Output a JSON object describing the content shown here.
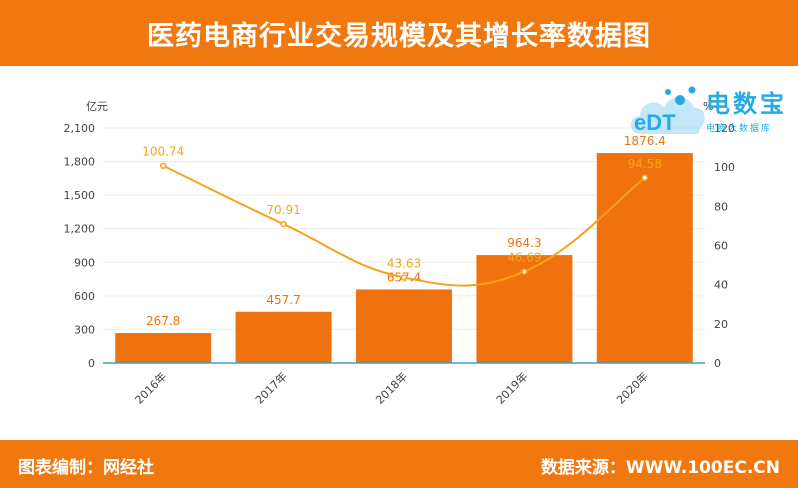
{
  "header": {
    "title": "医药电商行业交易规模及其增长率数据图"
  },
  "footer": {
    "left": "图表编制：网经社",
    "right": "数据来源：WWW.100EC.CN"
  },
  "logo": {
    "text": "电数宝",
    "sub": "电商大数据库",
    "mark": "eDT"
  },
  "colors": {
    "accent": "#f0780f",
    "bar": "#f0720e",
    "line": "#f7a21b",
    "axis": "#3aa0c8",
    "logo": "#27a9e1"
  },
  "chart_data": {
    "type": "bar",
    "categories": [
      "2016年",
      "2017年",
      "2018年",
      "2019年",
      "2020年"
    ],
    "series": [
      {
        "name": "",
        "type": "bar",
        "axis": "left",
        "values": [
          267.8,
          457.7,
          657.4,
          964.3,
          1876.4
        ]
      },
      {
        "name": "",
        "type": "line",
        "axis": "right",
        "values": [
          100.74,
          70.91,
          43.63,
          46.69,
          94.58
        ]
      }
    ],
    "y_left": {
      "label": "亿元",
      "min": 0,
      "max": 2100,
      "ticks": [
        "0",
        "300",
        "600",
        "900",
        "1,200",
        "1,500",
        "1,800",
        "2,100"
      ]
    },
    "y_right": {
      "label": "%",
      "min": 0,
      "max": 120,
      "ticks": [
        "0",
        "20",
        "40",
        "60",
        "80",
        "100",
        "120"
      ]
    },
    "bar_labels": [
      "267.8",
      "457.7",
      "657.4",
      "964.3",
      "1876.4"
    ],
    "line_labels": [
      "100.74",
      "70.91",
      "43.63",
      "46.69",
      "94.58"
    ],
    "grid": true
  }
}
